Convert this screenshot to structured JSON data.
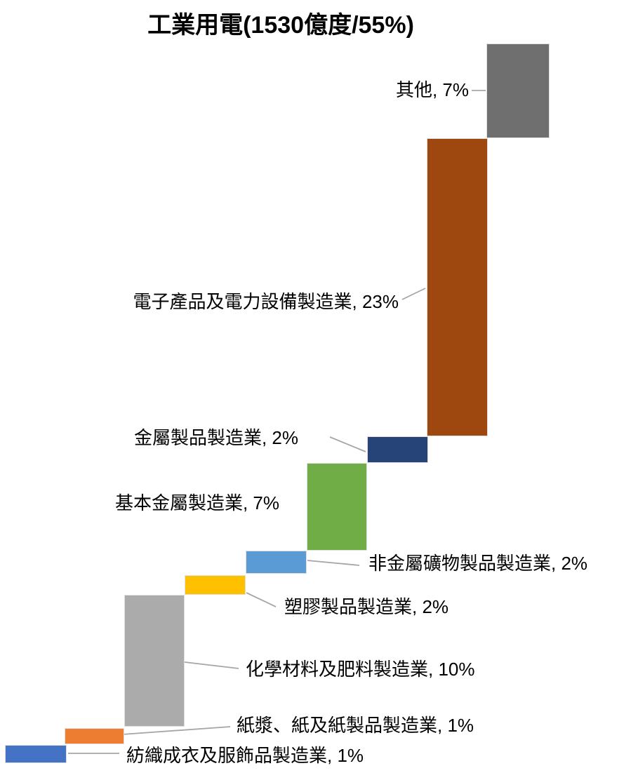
{
  "title": "工業用電(1530億度/55%)",
  "chart_data": {
    "type": "waterfall",
    "title": "工業用電(1530億度/55%)",
    "total_value": "1530億度",
    "total_share_pct": 55,
    "unit": "%",
    "orientation": "step-down from top-right to bottom-left",
    "legend_position": "none (direct data labels with leader lines)",
    "grid": false,
    "axes_visible": false,
    "connector_color": "#a6a6a6",
    "segments": [
      {
        "label": "其他",
        "pct": 7,
        "display": "其他, 7%",
        "color": "#6f6f6f"
      },
      {
        "label": "電子產品及電力設備製造業",
        "pct": 23,
        "display": "電子產品及電力設備製造業, 23%",
        "color": "#9e470e"
      },
      {
        "label": "金屬製品製造業",
        "pct": 2,
        "display": "金屬製品製造業, 2%",
        "color": "#264478"
      },
      {
        "label": "基本金屬製造業",
        "pct": 7,
        "display": "基本金屬製造業, 7%",
        "color": "#70ad47"
      },
      {
        "label": "非金屬礦物製品製造業",
        "pct": 2,
        "display": "非金屬礦物製品製造業, 2%",
        "color": "#5b9bd5"
      },
      {
        "label": "塑膠製品製造業",
        "pct": 2,
        "display": "塑膠製品製造業, 2%",
        "color": "#ffc000"
      },
      {
        "label": "化學材料及肥料製造業",
        "pct": 10,
        "display": "化學材料及肥料製造業, 10%",
        "color": "#ababab"
      },
      {
        "label": "紙漿、紙及紙製品製造業",
        "pct": 1,
        "display": "紙漿、紙及紙製品製造業, 1%",
        "color": "#ed7d31"
      },
      {
        "label": "紡織成衣及服飾品製造業",
        "pct": 1,
        "display": "紡織成衣及服飾品製造業, 1%",
        "color": "#4472c4"
      }
    ]
  }
}
